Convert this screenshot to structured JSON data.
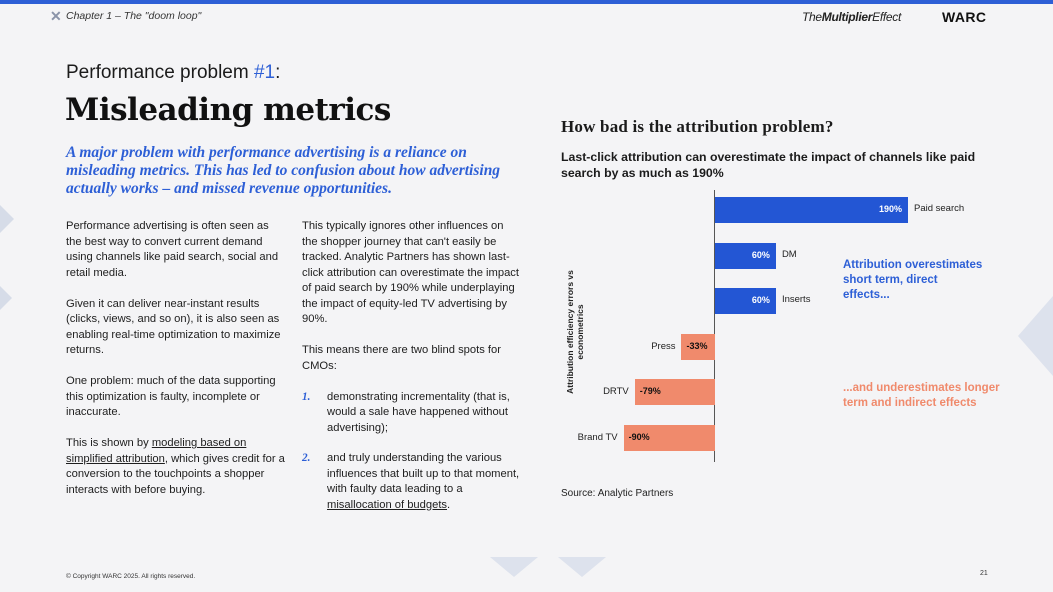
{
  "header": {
    "chapter": "Chapter 1 – The \"doom loop\"",
    "brand_multiplier_a": "The",
    "brand_multiplier_b": "Multiplier",
    "brand_multiplier_c": "Effect",
    "brand_warc": "WARC",
    "close_glyph": "✕"
  },
  "left": {
    "pretitle": "Performance problem ",
    "pretitle_accent": "#1",
    "pretitle_end": ":",
    "title": "Misleading metrics",
    "lede": "A major problem with performance advertising is a reliance on misleading metrics. This has led to confusion about how advertising actually works – and missed revenue opportunities.",
    "col1": {
      "p1": "Performance advertising is often seen as the best way to convert current demand using channels like paid search, social and retail media.",
      "p2": "Given it can deliver near-instant results (clicks, views, and so on), it is also seen as enabling real-time optimization to maximize returns.",
      "p3": "One problem: much of the data supporting this optimization is faulty, incomplete or inaccurate.",
      "p4_a": "This is shown by ",
      "p4_link": "modeling based on simplified attribution",
      "p4_b": ", which gives credit for a conversion to the touchpoints a shopper interacts with before buying."
    },
    "col2": {
      "p1": "This typically ignores other influences on the shopper journey that can't easily be tracked. Analytic Partners has shown last-click attribution can overestimate the impact of paid search by 190% while underplaying the impact of equity-led TV advertising by 90%.",
      "p2": "This means there are two blind spots for CMOs:",
      "li1_num": "1.",
      "li1": "demonstrating incrementality (that is, would a sale have happened without advertising);",
      "li2_num": "2.",
      "li2_a": "and truly understanding the various influences that built up to that moment, with faulty data leading to a ",
      "li2_link": "misallocation of budgets",
      "li2_b": "."
    }
  },
  "chart_data": {
    "type": "bar",
    "orientation": "horizontal",
    "title": "How bad is the attribution problem?",
    "subtitle": "Last-click attribution can overestimate the impact of channels like paid search by as much as 190%",
    "ylabel": "Attribution efficiency errors vs econometrics",
    "categories": [
      "Paid search",
      "DM",
      "Inserts",
      "Press",
      "DRTV",
      "Brand TV"
    ],
    "values": [
      190,
      60,
      60,
      -33,
      -79,
      -90
    ],
    "value_labels": [
      "190%",
      "60%",
      "60%",
      "-33%",
      "-79%",
      "-90%"
    ],
    "xlim": [
      -100,
      200
    ],
    "colors": {
      "positive": "#2356d4",
      "negative": "#f08a6c"
    },
    "annotations": {
      "positive": "Attribution overestimates short term, direct effects...",
      "negative": "...and underestimates longer term and indirect effects"
    },
    "source": "Source: Analytic Partners"
  },
  "footer": {
    "copyright": "© Copyright WARC 2025. All rights reserved.",
    "page_number": "21"
  }
}
